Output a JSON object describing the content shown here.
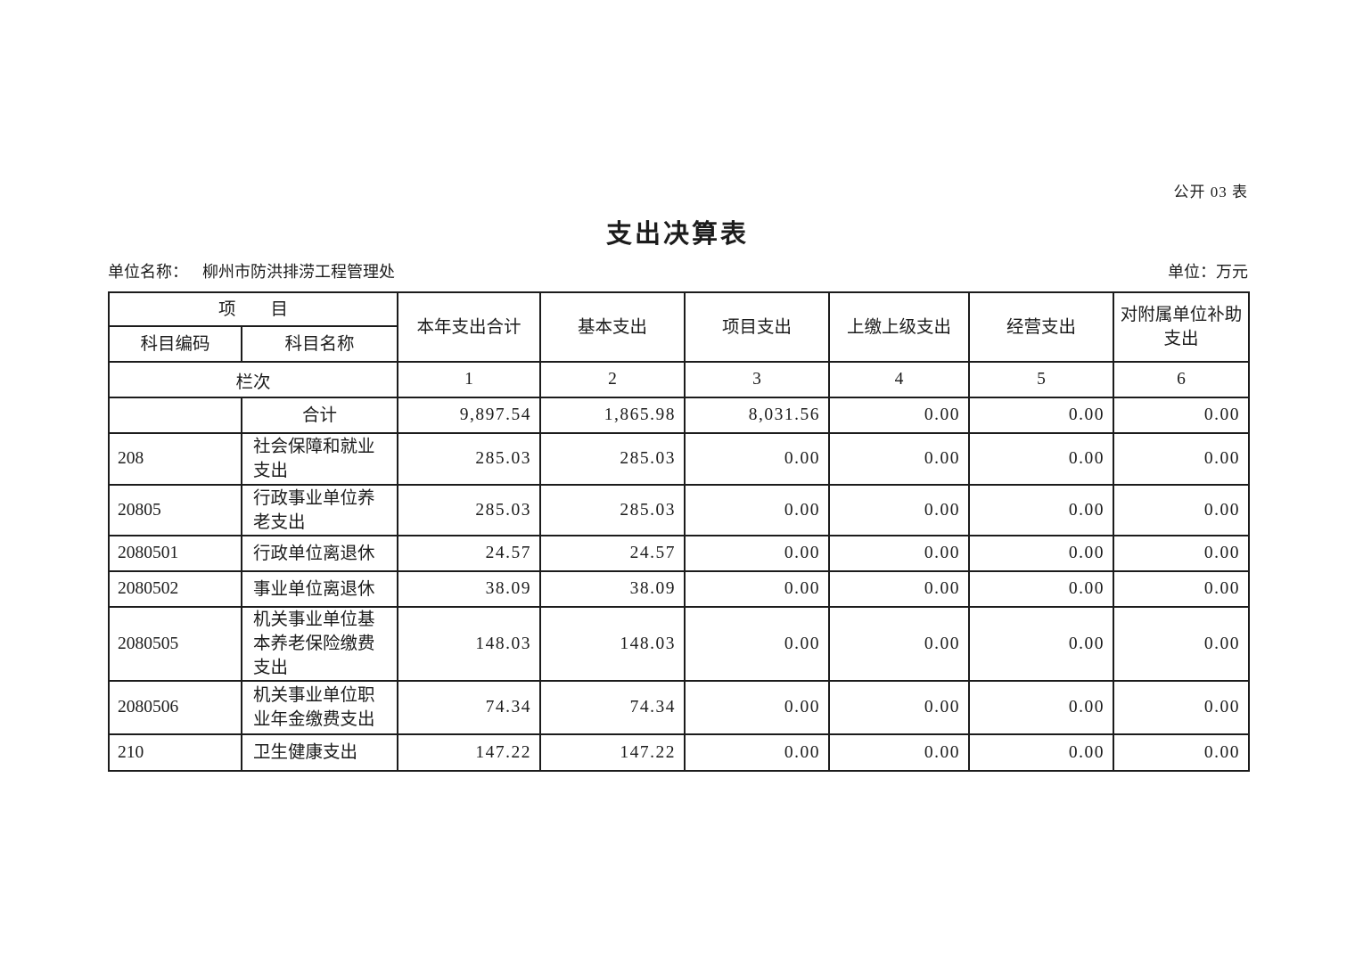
{
  "page": {
    "doc_label": "公开 03 表",
    "title": "支出决算表",
    "unit_name_label": "单位名称：",
    "unit_name_value": "柳州市防洪排涝工程管理处",
    "unit_label": "单位：万元"
  },
  "table": {
    "header": {
      "item": "项　　目",
      "subject_code": "科目编码",
      "subject_name": "科目名称",
      "col_total": "本年支出合计",
      "col_basic": "基本支出",
      "col_project": "项目支出",
      "col_upper": "上缴上级支出",
      "col_operating": "经营支出",
      "col_subsidy": "对附属单位补助支出"
    },
    "index_row_label": "栏次",
    "column_indexes": [
      "1",
      "2",
      "3",
      "4",
      "5",
      "6"
    ],
    "rows": [
      {
        "code": "",
        "name": "合计",
        "is_total": true,
        "values": [
          "9,897.54",
          "1,865.98",
          "8,031.56",
          "0.00",
          "0.00",
          "0.00"
        ]
      },
      {
        "code": "208",
        "name": "社会保障和就业支出",
        "values": [
          "285.03",
          "285.03",
          "0.00",
          "0.00",
          "0.00",
          "0.00"
        ]
      },
      {
        "code": "20805",
        "name": "行政事业单位养老支出",
        "values": [
          "285.03",
          "285.03",
          "0.00",
          "0.00",
          "0.00",
          "0.00"
        ]
      },
      {
        "code": "2080501",
        "name": "行政单位离退休",
        "values": [
          "24.57",
          "24.57",
          "0.00",
          "0.00",
          "0.00",
          "0.00"
        ]
      },
      {
        "code": "2080502",
        "name": "事业单位离退休",
        "values": [
          "38.09",
          "38.09",
          "0.00",
          "0.00",
          "0.00",
          "0.00"
        ]
      },
      {
        "code": "2080505",
        "name": "机关事业单位基本养老保险缴费支出",
        "values": [
          "148.03",
          "148.03",
          "0.00",
          "0.00",
          "0.00",
          "0.00"
        ]
      },
      {
        "code": "2080506",
        "name": "机关事业单位职业年金缴费支出",
        "values": [
          "74.34",
          "74.34",
          "0.00",
          "0.00",
          "0.00",
          "0.00"
        ]
      },
      {
        "code": "210",
        "name": "卫生健康支出",
        "values": [
          "147.22",
          "147.22",
          "0.00",
          "0.00",
          "0.00",
          "0.00"
        ]
      }
    ]
  }
}
